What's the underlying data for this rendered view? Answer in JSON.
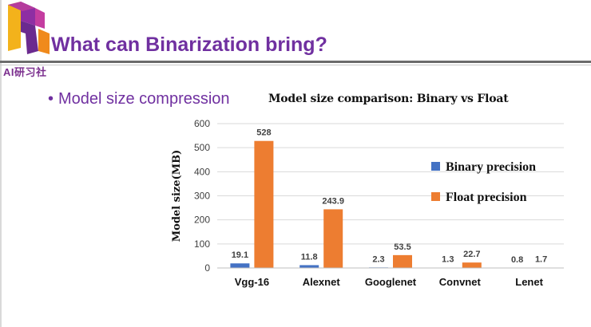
{
  "slide": {
    "title": "What can Binarization bring?",
    "bullet": "Model size compression",
    "logo_text": "AI研习社"
  },
  "colors": {
    "accent": "#7030a0",
    "binary": "#4472c4",
    "float": "#ed7d31"
  },
  "chart_data": {
    "type": "bar",
    "title": "Model size comparison: Binary vs Float",
    "ylabel": "Model size(MB)",
    "xlabel": "",
    "categories": [
      "Vgg-16",
      "Alexnet",
      "Googlenet",
      "Convnet",
      "Lenet"
    ],
    "yticks": [
      0,
      100,
      200,
      300,
      400,
      500,
      600
    ],
    "ylim": [
      0,
      600
    ],
    "grid": true,
    "legend_position": "right",
    "series": [
      {
        "name": "Binary precision",
        "color": "#4472c4",
        "values": [
          19.1,
          11.8,
          2.3,
          1.3,
          0.8
        ],
        "labels": [
          "19.1",
          "11.8",
          "2.3",
          "1.3",
          "0.8"
        ]
      },
      {
        "name": "Float precision",
        "color": "#ed7d31",
        "values": [
          528,
          243.9,
          53.5,
          22.7,
          1.7
        ],
        "labels": [
          "528",
          "243.9",
          "53.5",
          "22.7",
          "1.7"
        ]
      }
    ]
  }
}
